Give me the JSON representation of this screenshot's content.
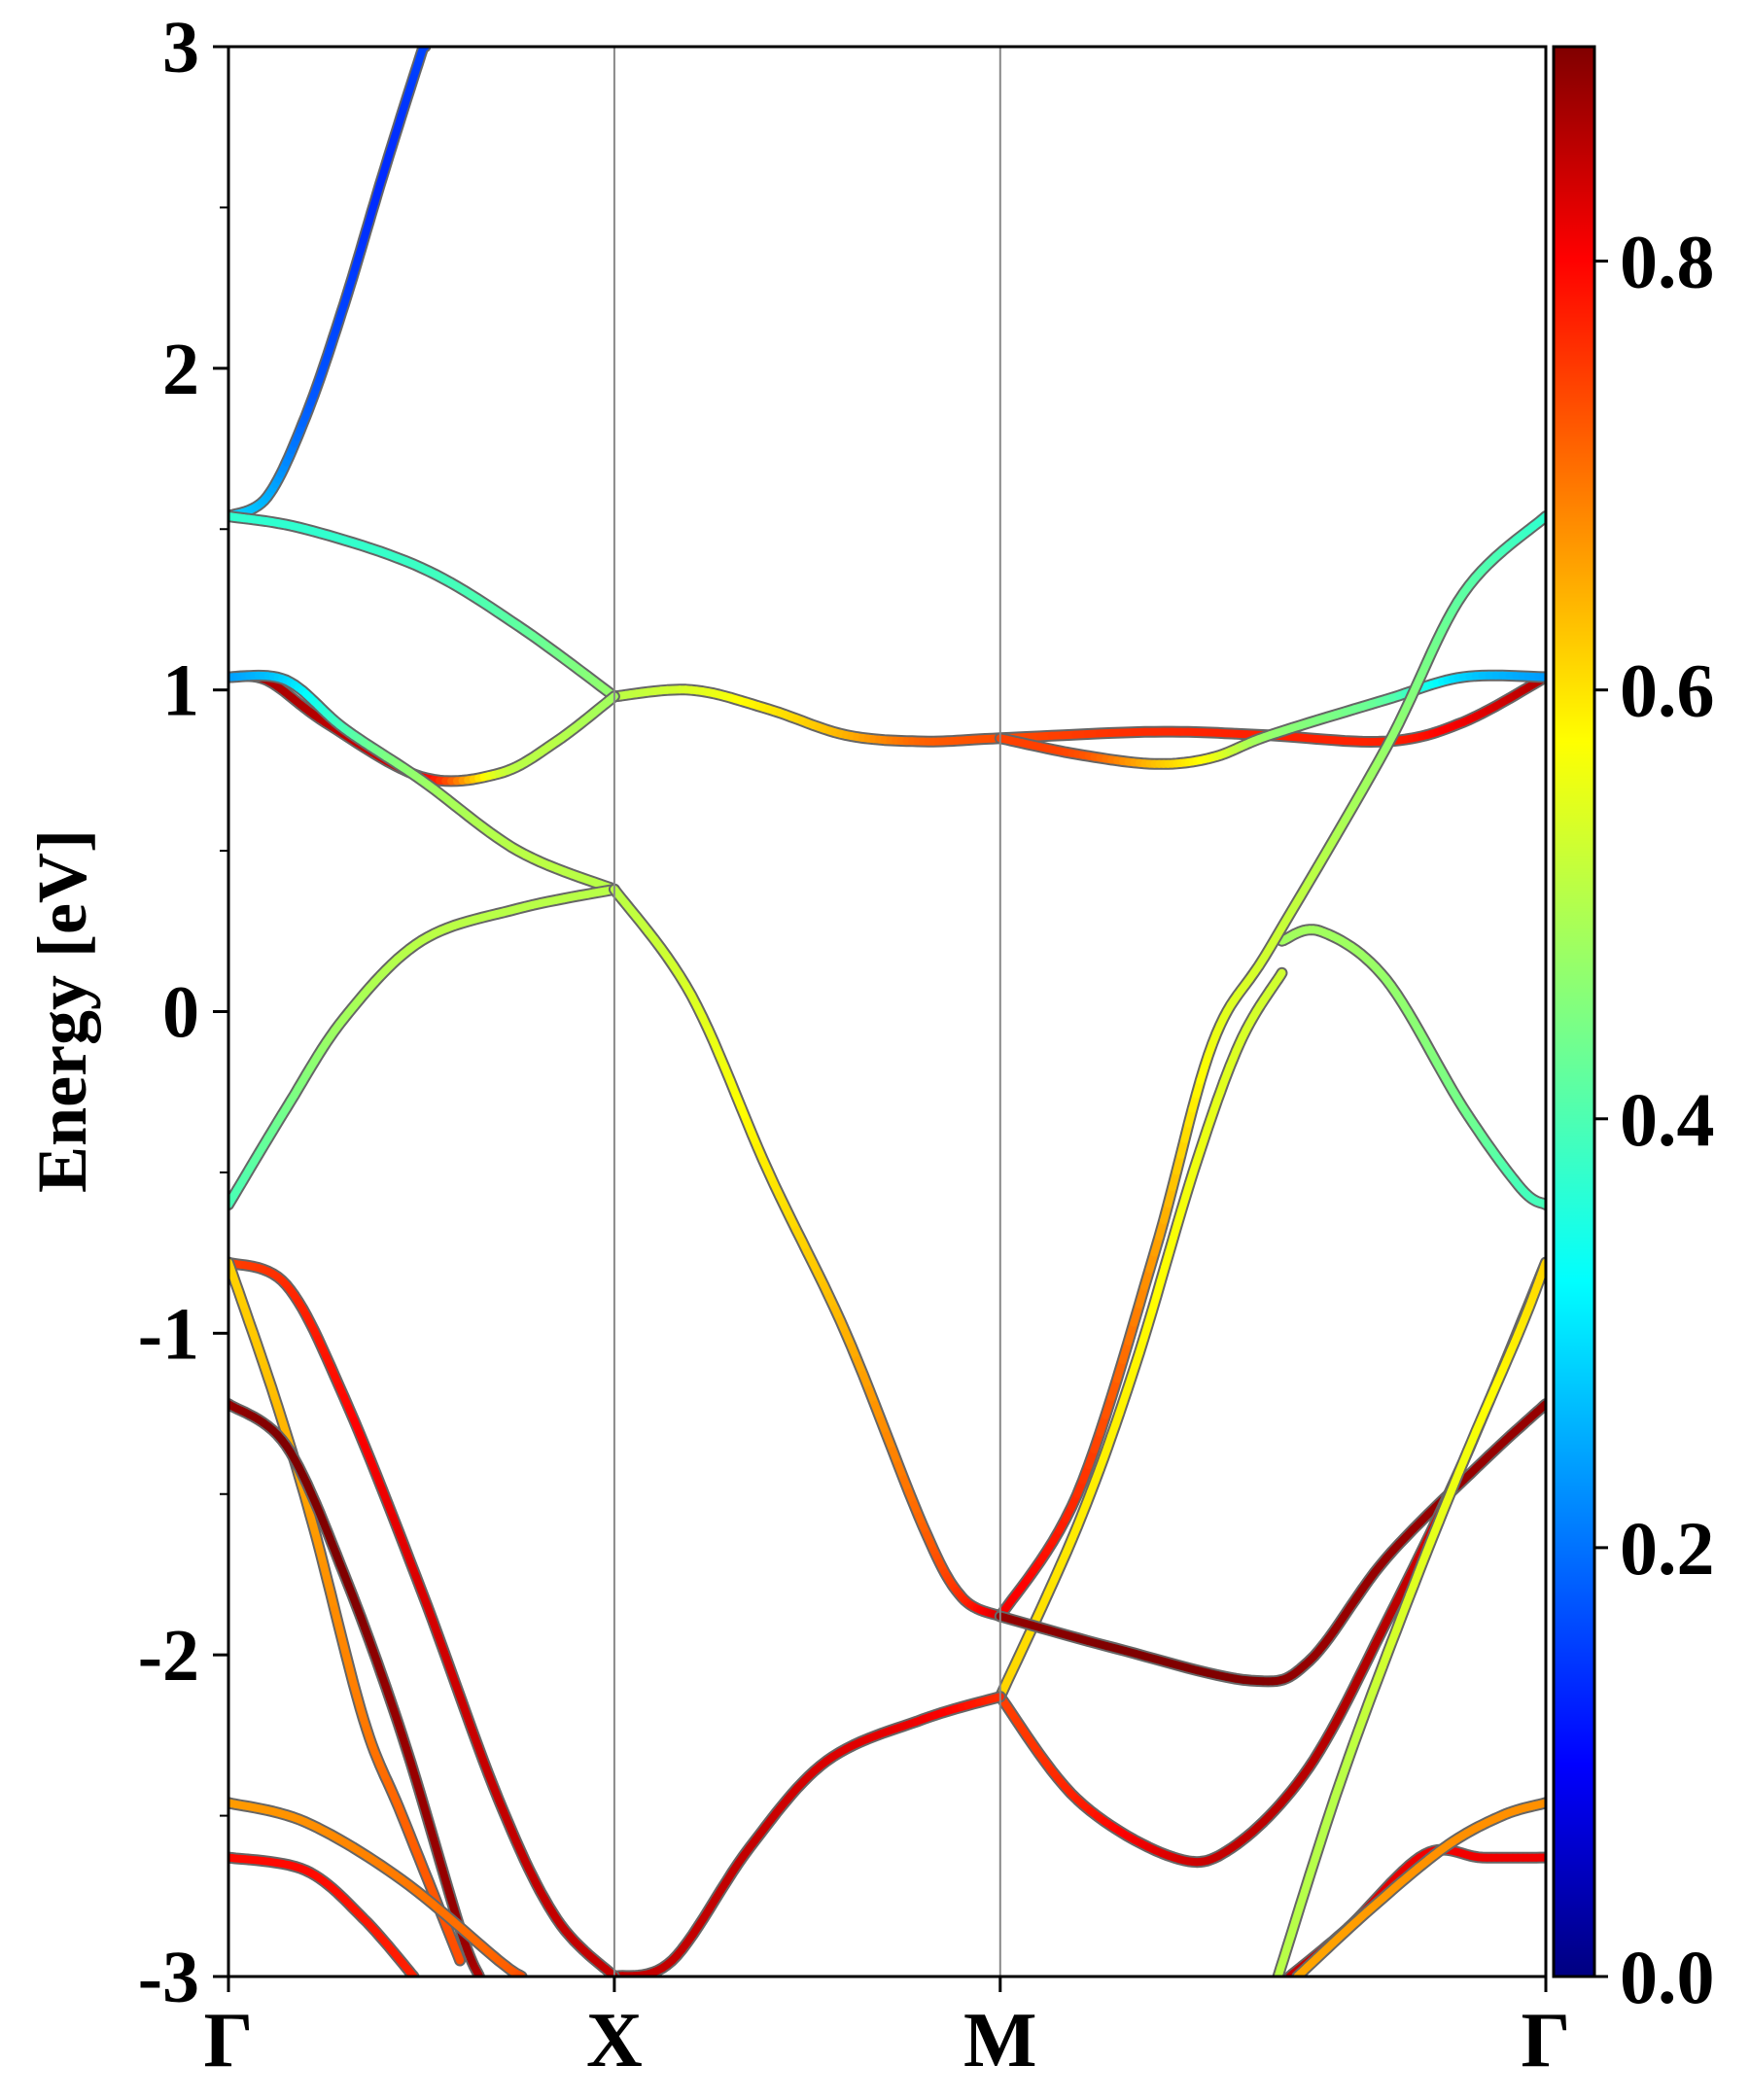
{
  "chart_data": {
    "type": "line",
    "title": "",
    "xlabel": "",
    "ylabel": "Energy [eV]",
    "ylim": [
      -3,
      3
    ],
    "xlim": [
      0,
      3.414
    ],
    "grid": false,
    "legend": "none",
    "x_ticks": [
      {
        "label": "Γ",
        "x": 0
      },
      {
        "label": "X",
        "x": 1
      },
      {
        "label": "M",
        "x": 2
      },
      {
        "label": "Γ",
        "x": 3.414
      }
    ],
    "y_ticks": [
      {
        "label": "-3",
        "value": -3
      },
      {
        "label": "-2",
        "value": -2
      },
      {
        "label": "-1",
        "value": -1
      },
      {
        "label": "0",
        "value": 0
      },
      {
        "label": "1",
        "value": 1
      },
      {
        "label": "2",
        "value": 2
      },
      {
        "label": "3",
        "value": 3
      }
    ],
    "colorbar": {
      "colormap": "jet",
      "range": [
        0,
        0.9
      ],
      "ticks": [
        {
          "label": "0.0",
          "value": 0.0
        },
        {
          "label": "0.2",
          "value": 0.2
        },
        {
          "label": "0.4",
          "value": 0.4
        },
        {
          "label": "0.6",
          "value": 0.6
        },
        {
          "label": "0.8",
          "value": 0.8
        }
      ]
    },
    "series": [
      {
        "points": [
          [
            0,
            1.54
          ],
          [
            0.1,
            1.6
          ],
          [
            0.2,
            1.85
          ],
          [
            0.3,
            2.2
          ],
          [
            0.4,
            2.6
          ],
          [
            0.5,
            2.98
          ],
          [
            0.51,
            3.0
          ]
        ],
        "weight": [
          0.3,
          0.27,
          0.2,
          0.17,
          0.15,
          0.17,
          0.17
        ]
      },
      {
        "points": [
          [
            0,
            1.54
          ],
          [
            0.2,
            1.5
          ],
          [
            0.5,
            1.38
          ],
          [
            0.75,
            1.2
          ],
          [
            1,
            0.98
          ]
        ],
        "weight": [
          0.38,
          0.38,
          0.39,
          0.42,
          0.47
        ]
      },
      {
        "points": [
          [
            1,
            0.98
          ],
          [
            1.2,
            1.0
          ],
          [
            1.4,
            0.94
          ],
          [
            1.6,
            0.86
          ],
          [
            1.8,
            0.84
          ],
          [
            2,
            0.85
          ],
          [
            2.4,
            0.87
          ],
          [
            2.68,
            0.86
          ],
          [
            3.0,
            0.84
          ],
          [
            3.2,
            0.9
          ],
          [
            3.414,
            1.04
          ]
        ],
        "weight": [
          0.5,
          0.53,
          0.58,
          0.63,
          0.7,
          0.72,
          0.75,
          0.76,
          0.76,
          0.8,
          0.86
        ]
      },
      {
        "points": [
          [
            0,
            1.04
          ],
          [
            0.1,
            1.03
          ],
          [
            0.25,
            0.9
          ],
          [
            0.5,
            0.73
          ],
          [
            0.7,
            0.74
          ],
          [
            0.85,
            0.84
          ],
          [
            1,
            0.98
          ]
        ],
        "weight": [
          0.86,
          0.86,
          0.85,
          0.8,
          0.53,
          0.5,
          0.48
        ]
      },
      {
        "points": [
          [
            0,
            1.04
          ],
          [
            0.15,
            1.03
          ],
          [
            0.3,
            0.88
          ],
          [
            0.5,
            0.72
          ],
          [
            0.75,
            0.5
          ],
          [
            1,
            0.38
          ]
        ],
        "weight": [
          0.25,
          0.3,
          0.4,
          0.47,
          0.5,
          0.5
        ]
      },
      {
        "points": [
          [
            2,
            0.85
          ],
          [
            2.2,
            0.8
          ],
          [
            2.4,
            0.77
          ],
          [
            2.55,
            0.79
          ],
          [
            2.7,
            0.86
          ],
          [
            3.0,
            0.97
          ],
          [
            3.2,
            1.04
          ],
          [
            3.414,
            1.04
          ]
        ],
        "weight": [
          0.73,
          0.72,
          0.62,
          0.55,
          0.47,
          0.42,
          0.3,
          0.25
        ]
      },
      {
        "points": [
          [
            0,
            -0.6
          ],
          [
            0.15,
            -0.3
          ],
          [
            0.3,
            -0.02
          ],
          [
            0.5,
            0.22
          ],
          [
            0.75,
            0.32
          ],
          [
            1,
            0.38
          ]
        ],
        "weight": [
          0.4,
          0.44,
          0.48,
          0.5,
          0.5,
          0.5
        ]
      },
      {
        "points": [
          [
            1,
            0.38
          ],
          [
            1.2,
            0.05
          ],
          [
            1.4,
            -0.5
          ],
          [
            1.6,
            -1.0
          ],
          [
            1.8,
            -1.6
          ],
          [
            1.9,
            -1.82
          ],
          [
            2,
            -1.88
          ]
        ],
        "weight": [
          0.5,
          0.53,
          0.58,
          0.63,
          0.7,
          0.75,
          0.82
        ]
      },
      {
        "points": [
          [
            2.73,
            0.22
          ],
          [
            2.83,
            0.25
          ],
          [
            3.0,
            0.1
          ],
          [
            3.2,
            -0.3
          ],
          [
            3.35,
            -0.55
          ],
          [
            3.414,
            -0.6
          ]
        ],
        "weight": [
          0.48,
          0.48,
          0.47,
          0.44,
          0.4,
          0.4
        ]
      },
      {
        "points": [
          [
            2,
            -1.88
          ],
          [
            2.2,
            -1.5
          ],
          [
            2.4,
            -0.75
          ],
          [
            2.55,
            -0.1
          ],
          [
            2.7,
            0.2
          ],
          [
            3.0,
            0.82
          ],
          [
            3.2,
            1.3
          ],
          [
            3.414,
            1.54
          ]
        ],
        "weight": [
          0.8,
          0.75,
          0.65,
          0.55,
          0.52,
          0.47,
          0.42,
          0.38
        ]
      },
      {
        "points": [
          [
            2,
            -2.13
          ],
          [
            2.2,
            -1.6
          ],
          [
            2.35,
            -1.1
          ],
          [
            2.5,
            -0.5
          ],
          [
            2.62,
            -0.1
          ],
          [
            2.73,
            0.12
          ]
        ],
        "weight": [
          0.6,
          0.58,
          0.57,
          0.55,
          0.53,
          0.52
        ]
      },
      {
        "points": [
          [
            2,
            -1.88
          ],
          [
            2.3,
            -1.98
          ],
          [
            2.65,
            -2.08
          ],
          [
            2.8,
            -2.02
          ],
          [
            3.0,
            -1.7
          ],
          [
            3.25,
            -1.4
          ],
          [
            3.414,
            -1.22
          ]
        ],
        "weight": [
          0.88,
          0.9,
          0.9,
          0.88,
          0.88,
          0.88,
          0.88
        ]
      },
      {
        "points": [
          [
            2,
            -2.13
          ],
          [
            2.2,
            -2.45
          ],
          [
            2.45,
            -2.63
          ],
          [
            2.6,
            -2.6
          ],
          [
            2.8,
            -2.35
          ],
          [
            3.0,
            -1.9
          ],
          [
            3.2,
            -1.4
          ],
          [
            3.414,
            -0.78
          ]
        ],
        "weight": [
          0.73,
          0.76,
          0.82,
          0.84,
          0.85,
          0.85,
          0.8,
          0.75
        ]
      },
      {
        "points": [
          [
            2.72,
            -3.0
          ],
          [
            2.88,
            -2.4
          ],
          [
            3.05,
            -1.85
          ],
          [
            3.2,
            -1.4
          ],
          [
            3.35,
            -0.98
          ],
          [
            3.414,
            -0.78
          ]
        ],
        "weight": [
          0.5,
          0.5,
          0.53,
          0.55,
          0.58,
          0.6
        ]
      },
      {
        "points": [
          [
            1,
            -3.0
          ],
          [
            1.15,
            -2.95
          ],
          [
            1.35,
            -2.6
          ],
          [
            1.55,
            -2.33
          ],
          [
            1.8,
            -2.2
          ],
          [
            2,
            -2.13
          ]
        ],
        "weight": [
          0.84,
          0.84,
          0.84,
          0.82,
          0.8,
          0.75
        ]
      },
      {
        "points": [
          [
            0,
            -0.78
          ],
          [
            0.15,
            -0.85
          ],
          [
            0.3,
            -1.2
          ],
          [
            0.5,
            -1.8
          ],
          [
            0.7,
            -2.45
          ],
          [
            0.85,
            -2.82
          ],
          [
            1,
            -3.0
          ]
        ],
        "weight": [
          0.73,
          0.75,
          0.78,
          0.82,
          0.84,
          0.84,
          0.84
        ]
      },
      {
        "points": [
          [
            0,
            -0.78
          ],
          [
            0.12,
            -1.2
          ],
          [
            0.22,
            -1.6
          ],
          [
            0.35,
            -2.2
          ],
          [
            0.45,
            -2.5
          ],
          [
            0.6,
            -2.95
          ]
        ],
        "weight": [
          0.6,
          0.62,
          0.65,
          0.68,
          0.7,
          0.72
        ]
      },
      {
        "points": [
          [
            0,
            -1.22
          ],
          [
            0.15,
            -1.35
          ],
          [
            0.3,
            -1.75
          ],
          [
            0.45,
            -2.25
          ],
          [
            0.6,
            -2.85
          ],
          [
            0.65,
            -3.0
          ]
        ],
        "weight": [
          0.88,
          0.9,
          0.9,
          0.88,
          0.88,
          0.86
        ]
      },
      {
        "points": [
          [
            0,
            -2.46
          ],
          [
            0.2,
            -2.52
          ],
          [
            0.45,
            -2.7
          ],
          [
            0.7,
            -2.95
          ],
          [
            0.76,
            -3.0
          ]
        ],
        "weight": [
          0.65,
          0.66,
          0.68,
          0.7,
          0.72
        ]
      },
      {
        "points": [
          [
            0,
            -2.63
          ],
          [
            0.2,
            -2.67
          ],
          [
            0.35,
            -2.82
          ],
          [
            0.48,
            -3.0
          ]
        ],
        "weight": [
          0.78,
          0.78,
          0.77,
          0.76
        ]
      },
      {
        "points": [
          [
            2.75,
            -3.0
          ],
          [
            2.9,
            -2.85
          ],
          [
            3.1,
            -2.62
          ],
          [
            3.25,
            -2.63
          ],
          [
            3.414,
            -2.63
          ]
        ],
        "weight": [
          0.84,
          0.83,
          0.8,
          0.8,
          0.8
        ]
      },
      {
        "points": [
          [
            2.77,
            -3.0
          ],
          [
            2.95,
            -2.8
          ],
          [
            3.15,
            -2.6
          ],
          [
            3.3,
            -2.5
          ],
          [
            3.414,
            -2.46
          ]
        ],
        "weight": [
          0.64,
          0.65,
          0.66,
          0.66,
          0.66
        ]
      }
    ]
  }
}
